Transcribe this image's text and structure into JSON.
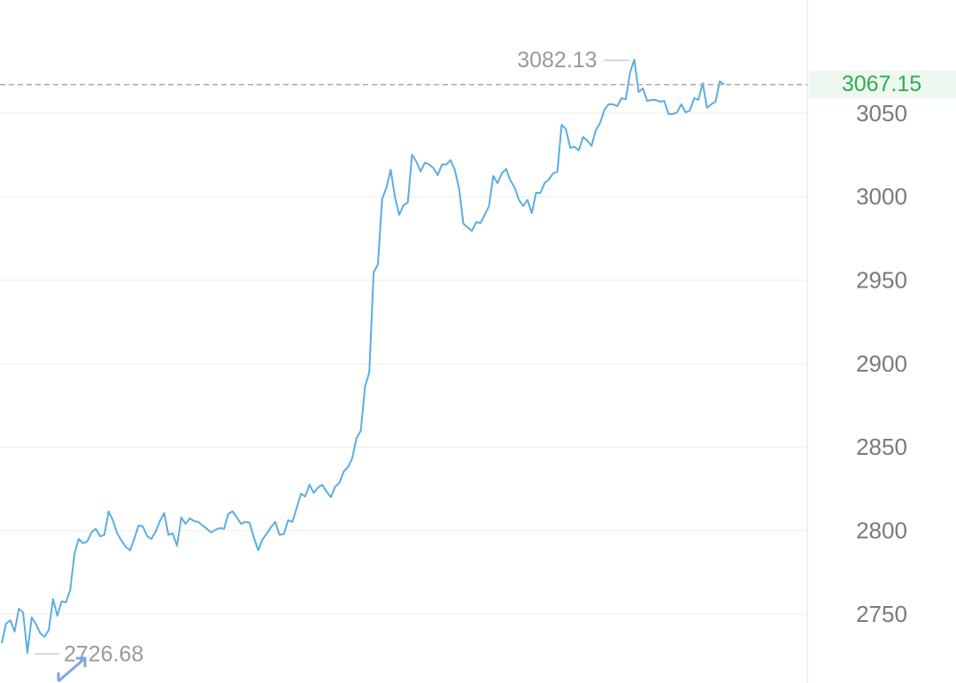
{
  "chart_data": {
    "type": "line",
    "values": [
      2732.6,
      2744.2,
      2746.3,
      2739.5,
      2753.2,
      2751,
      2726.68,
      2748,
      2744,
      2738.5,
      2736.3,
      2740.5,
      2759,
      2749,
      2757.6,
      2757,
      2764.4,
      2786,
      2795,
      2792.4,
      2793.5,
      2799,
      2801,
      2796.5,
      2797.4,
      2811.5,
      2806.2,
      2798.3,
      2794,
      2790.3,
      2788.2,
      2795,
      2803,
      2802.5,
      2796.7,
      2795,
      2799.3,
      2805.7,
      2810.5,
      2797.4,
      2798.3,
      2790.9,
      2807.8,
      2804,
      2807.3,
      2805.7,
      2805.2,
      2803,
      2801,
      2798.9,
      2800.5,
      2801.5,
      2801,
      2810,
      2811.5,
      2807.8,
      2804,
      2805.2,
      2804.7,
      2795.6,
      2788.2,
      2794.6,
      2798.3,
      2802,
      2805.2,
      2797.4,
      2797.9,
      2806.2,
      2805.2,
      2813.6,
      2822.1,
      2820.4,
      2827.4,
      2822.6,
      2825.8,
      2827.4,
      2823.2,
      2820,
      2826.3,
      2828.5,
      2835.4,
      2838,
      2843.3,
      2855.5,
      2859.8,
      2886.3,
      2894.7,
      2954.6,
      2959.4,
      2998.6,
      3005.5,
      3016.1,
      2999.7,
      2989.1,
      2994.9,
      2996.5,
      3025.1,
      3020.9,
      3015.1,
      3020.4,
      3019.3,
      3017.1,
      3012.9,
      3019.3,
      3019.3,
      3021.9,
      3016.1,
      3005,
      2983.8,
      2981.6,
      2979.5,
      2984.8,
      2984.2,
      2989.1,
      2994.4,
      3012.4,
      3008.1,
      3014,
      3016.6,
      3009.7,
      3005.5,
      2998.1,
      2994.4,
      2998.1,
      2990.1,
      3002.3,
      3002.3,
      3008.1,
      3010.3,
      3014,
      3015,
      3043.1,
      3040.5,
      3029.3,
      3029.9,
      3027.7,
      3035.7,
      3033.6,
      3030.4,
      3039.9,
      3044.2,
      3052.1,
      3055.3,
      3055.3,
      3054.2,
      3059,
      3058.4,
      3074.4,
      3082.13,
      3062.7,
      3064.8,
      3057.4,
      3057.9,
      3057.9,
      3056.9,
      3057.4,
      3049.5,
      3049.5,
      3050.5,
      3055.3,
      3050.5,
      3051.6,
      3059,
      3058,
      3068,
      3053.2,
      3055.3,
      3056.9,
      3069.1,
      3067.15
    ],
    "color": "#5aaee2",
    "ylim": [
      2708.7,
      3117.8
    ],
    "yticks": [
      2750,
      2800,
      2850,
      2900,
      2950,
      3000,
      3050
    ],
    "grid": true,
    "high": 3082.13,
    "low": 2726.68,
    "last": 3067.15,
    "last_color": "#2fae4e"
  }
}
